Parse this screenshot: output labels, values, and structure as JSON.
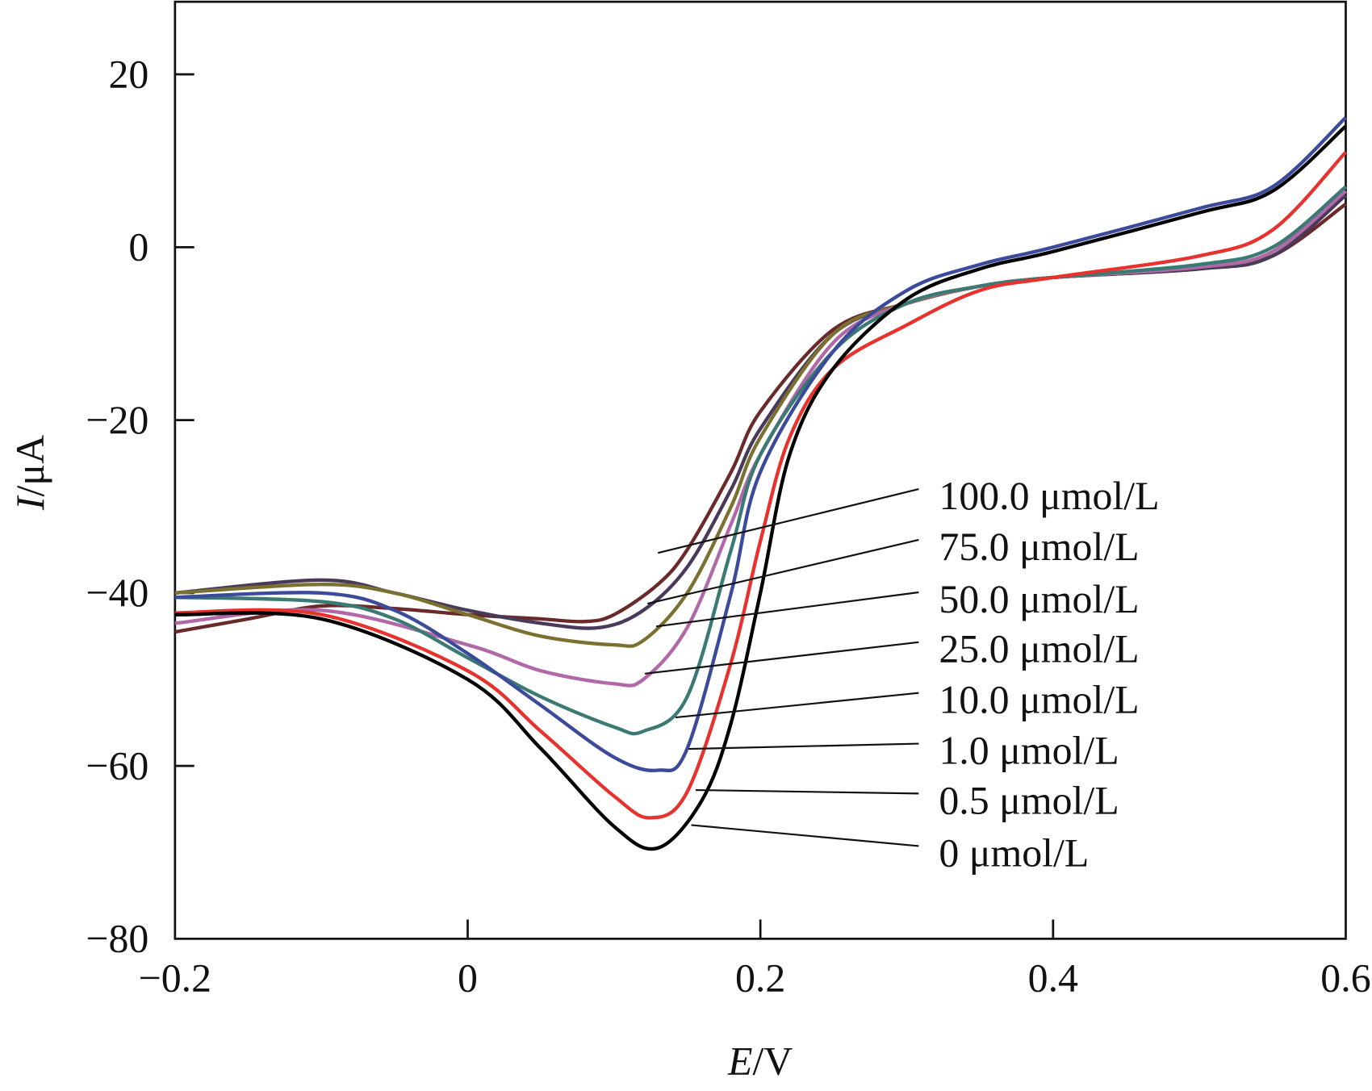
{
  "chart_data": {
    "type": "line",
    "xlabel_italic": "E",
    "xlabel_unit": "/V",
    "ylabel_italic": "I",
    "ylabel_unit": "/μA",
    "xlim": [
      -0.2,
      0.6
    ],
    "ylim": [
      -80,
      28.4
    ],
    "xticks": [
      -0.2,
      0,
      0.2,
      0.4,
      0.6
    ],
    "xtick_labels": [
      "−0.2",
      "0",
      "0.2",
      "0.4",
      "0.6"
    ],
    "yticks": [
      20,
      0,
      -20,
      -40,
      -60,
      -80
    ],
    "ytick_labels": [
      "20",
      "0",
      "−20",
      "−40",
      "−60",
      "−80"
    ],
    "grid": false,
    "legend": "callout labels at right",
    "series": [
      {
        "name": "0 μmol/L",
        "color": "#000000",
        "x": [
          -0.2,
          -0.1,
          0,
          0.05,
          0.1,
          0.13,
          0.16,
          0.18,
          0.2,
          0.22,
          0.25,
          0.3,
          0.35,
          0.4,
          0.5,
          0.55,
          0.6
        ],
        "y": [
          -42.5,
          -43,
          -50,
          -58,
          -67,
          -69.5,
          -64,
          -55,
          -40,
          -24,
          -14,
          -6,
          -2.5,
          -0.5,
          4,
          6.5,
          14
        ]
      },
      {
        "name": "0.5 μmol/L",
        "color": "#e8322e",
        "x": [
          -0.2,
          -0.1,
          0,
          0.05,
          0.1,
          0.125,
          0.15,
          0.18,
          0.2,
          0.22,
          0.25,
          0.3,
          0.35,
          0.4,
          0.5,
          0.55,
          0.6
        ],
        "y": [
          -42.3,
          -42.5,
          -49,
          -56,
          -63.5,
          -66,
          -63,
          -48,
          -34,
          -22,
          -14,
          -9,
          -5,
          -3.5,
          -1,
          2,
          11
        ]
      },
      {
        "name": "1.0 μmol/L",
        "color": "#3b4a9a",
        "x": [
          -0.2,
          -0.1,
          -0.05,
          0,
          0.05,
          0.1,
          0.13,
          0.15,
          0.18,
          0.2,
          0.25,
          0.3,
          0.35,
          0.4,
          0.5,
          0.55,
          0.6
        ],
        "y": [
          -40.5,
          -40,
          -42,
          -47,
          -53,
          -59,
          -60.5,
          -58,
          -40,
          -26,
          -12,
          -5,
          -2,
          0,
          4.5,
          7,
          15
        ]
      },
      {
        "name": "10.0 μmol/L",
        "color": "#3b7a73",
        "x": [
          -0.2,
          -0.1,
          -0.05,
          0,
          0.05,
          0.1,
          0.12,
          0.15,
          0.18,
          0.2,
          0.25,
          0.3,
          0.35,
          0.4,
          0.5,
          0.55,
          0.6
        ],
        "y": [
          -40.5,
          -41,
          -43,
          -47.5,
          -52,
          -55.5,
          -56,
          -52,
          -35,
          -24,
          -12,
          -6.5,
          -4.5,
          -3.5,
          -2,
          0,
          7
        ]
      },
      {
        "name": "25.0 μmol/L",
        "color": "#b068a8",
        "x": [
          -0.2,
          -0.1,
          0,
          0.05,
          0.1,
          0.12,
          0.15,
          0.18,
          0.2,
          0.25,
          0.3,
          0.35,
          0.4,
          0.5,
          0.55,
          0.6
        ],
        "y": [
          -43.5,
          -42,
          -46,
          -49,
          -50.5,
          -50,
          -44,
          -32,
          -24,
          -11,
          -6.5,
          -4.5,
          -3.5,
          -2.3,
          -0.5,
          6.5
        ]
      },
      {
        "name": "50.0 μmol/L",
        "color": "#7a7030",
        "x": [
          -0.2,
          -0.1,
          -0.05,
          0,
          0.05,
          0.1,
          0.12,
          0.15,
          0.18,
          0.2,
          0.25,
          0.3,
          0.35,
          0.4,
          0.5,
          0.55,
          0.6
        ],
        "y": [
          -40,
          -39,
          -40,
          -42.5,
          -45,
          -46,
          -45.5,
          -40,
          -30,
          -22,
          -10,
          -6.5,
          -4.5,
          -3.5,
          -2.3,
          -0.5,
          7
        ]
      },
      {
        "name": "75.0 μmol/L",
        "color": "#4a3a5a",
        "x": [
          -0.2,
          -0.1,
          -0.05,
          0,
          0.05,
          0.09,
          0.12,
          0.15,
          0.18,
          0.2,
          0.25,
          0.3,
          0.35,
          0.4,
          0.5,
          0.55,
          0.6
        ],
        "y": [
          -40,
          -38.5,
          -40,
          -42,
          -43.5,
          -44,
          -42,
          -37,
          -28,
          -21,
          -10,
          -6.5,
          -4.5,
          -3.5,
          -2.5,
          -1,
          6
        ]
      },
      {
        "name": "100.0 μmol/L",
        "color": "#6b2a2a",
        "x": [
          -0.2,
          -0.15,
          -0.1,
          -0.05,
          0,
          0.05,
          0.08,
          0.1,
          0.13,
          0.15,
          0.18,
          0.2,
          0.25,
          0.3,
          0.35,
          0.4,
          0.5,
          0.55,
          0.6
        ],
        "y": [
          -44.5,
          -43,
          -41.5,
          -41.8,
          -42.5,
          -43,
          -43.3,
          -42.5,
          -39,
          -35,
          -26,
          -19,
          -9.5,
          -6.5,
          -4.5,
          -3.5,
          -2.5,
          -1,
          5
        ]
      }
    ]
  }
}
